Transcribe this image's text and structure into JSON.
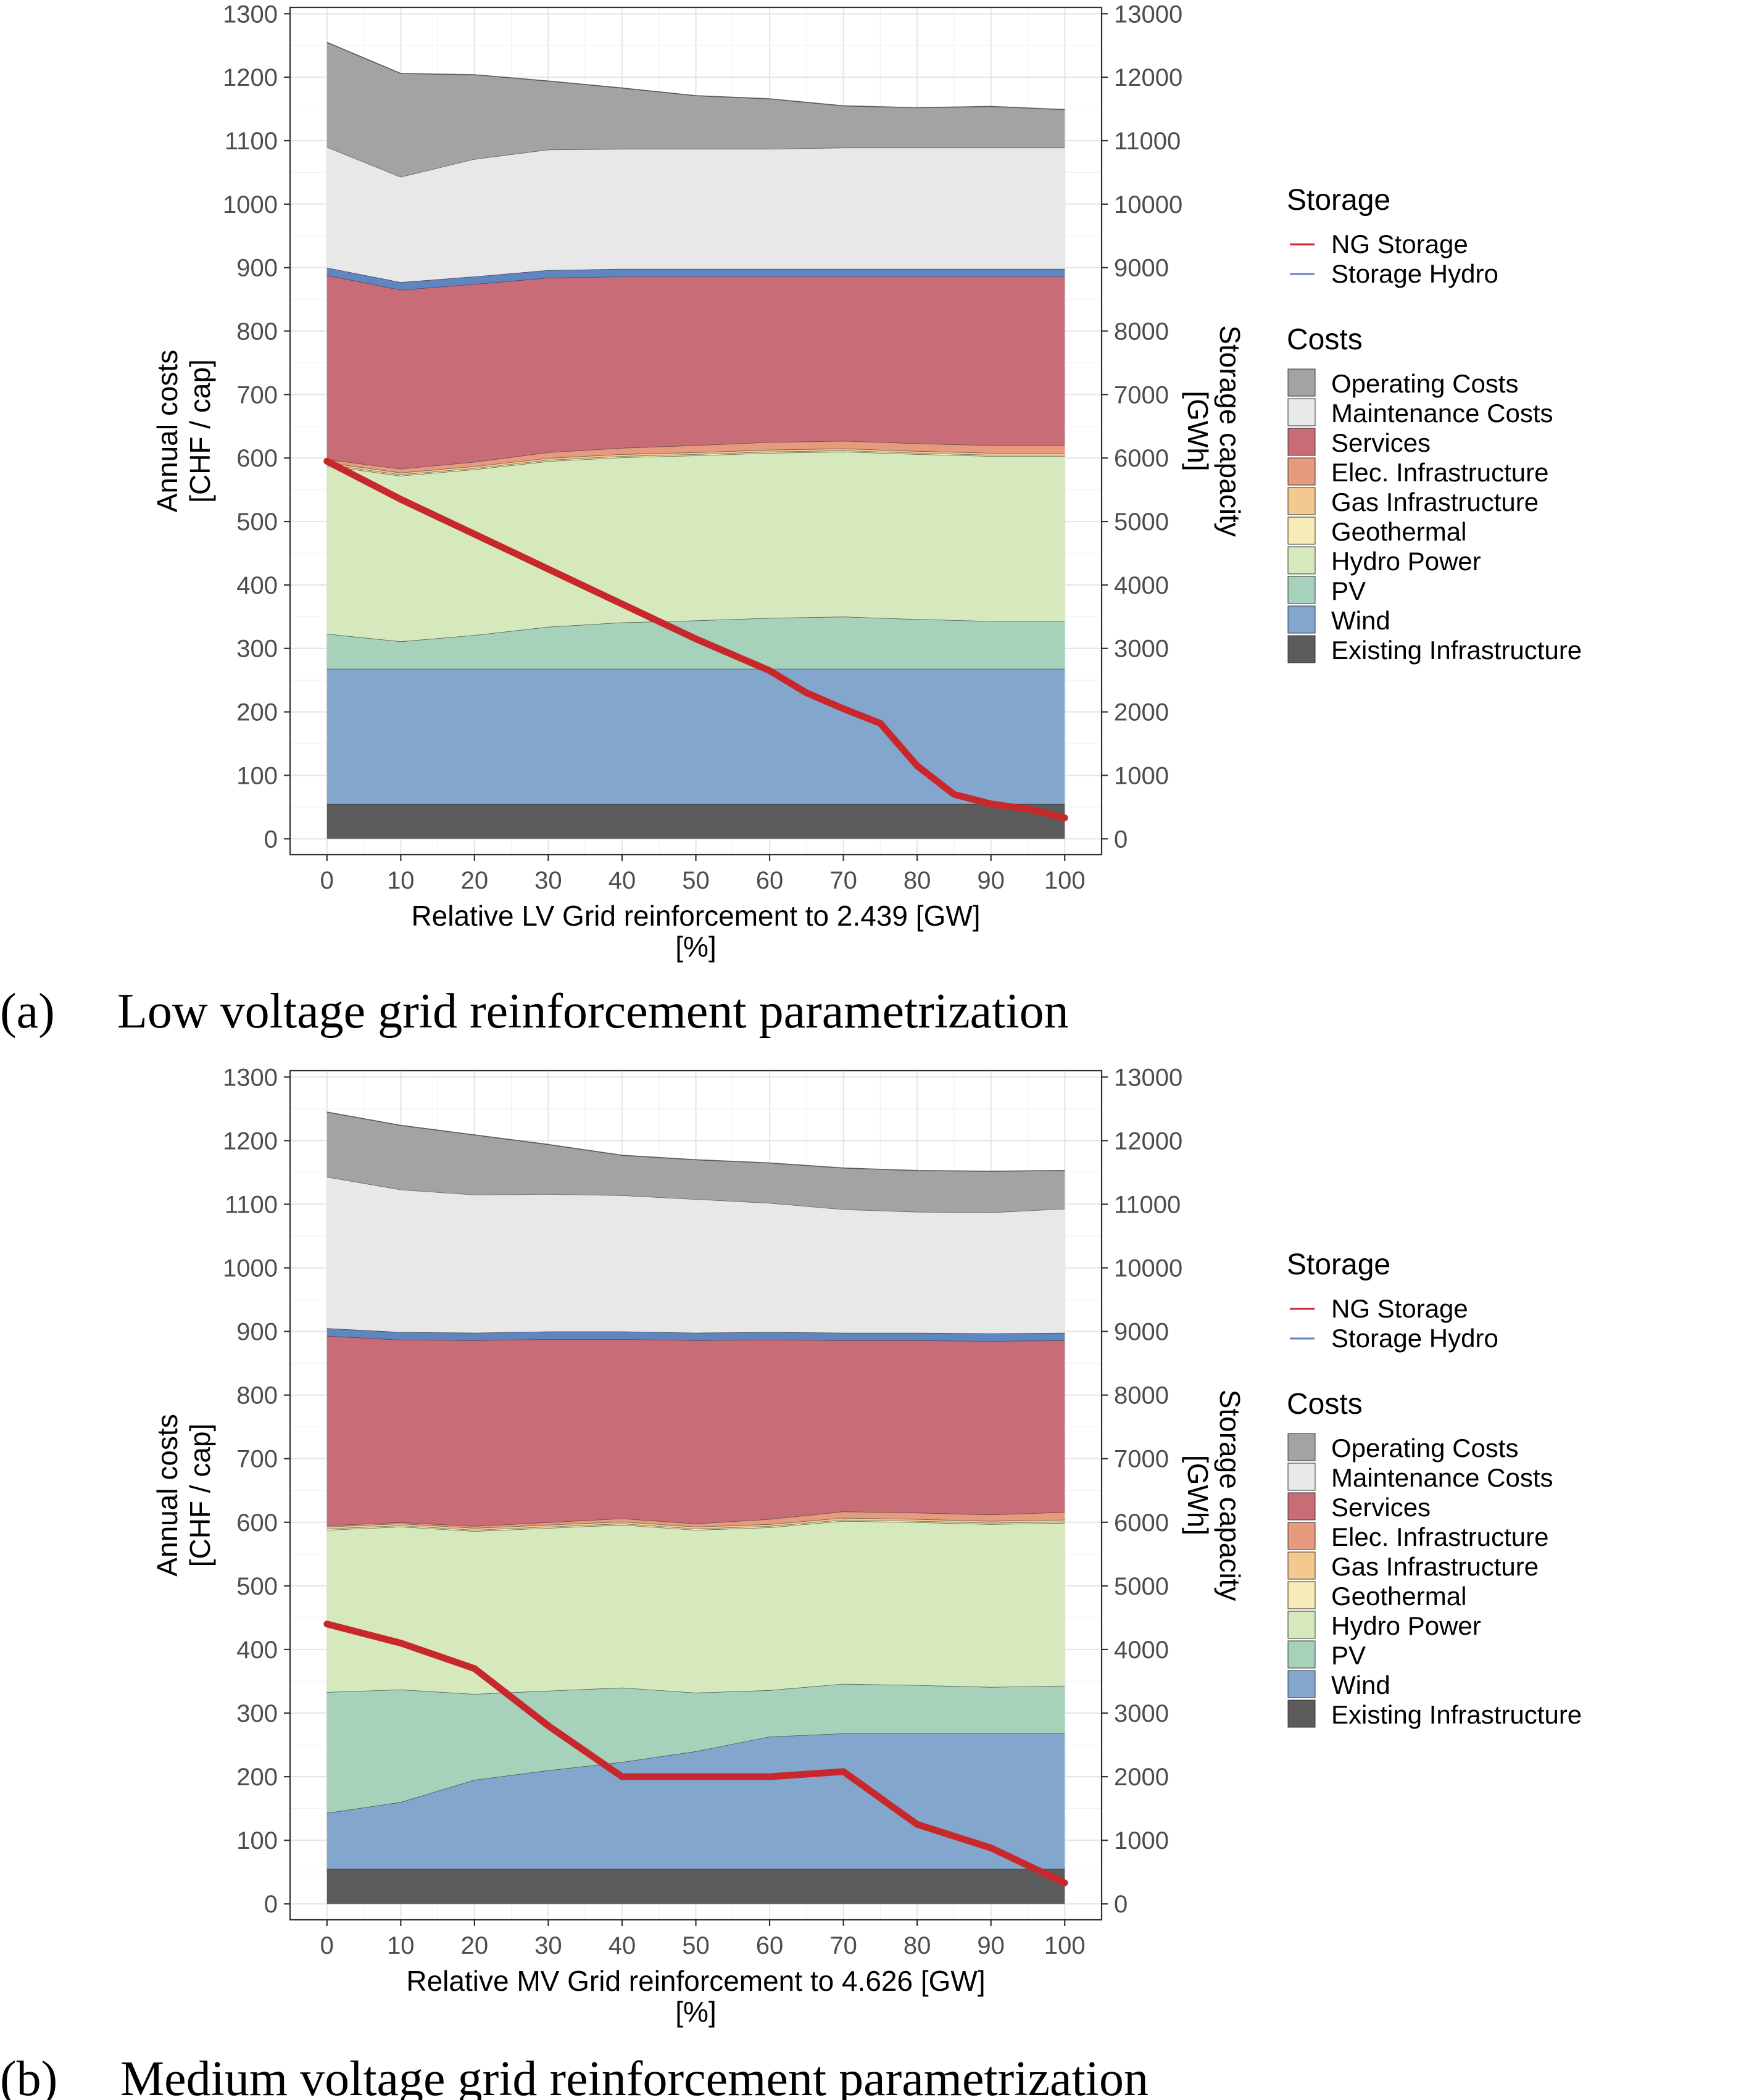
{
  "chart_data": [
    {
      "type": "area",
      "panel_label": "(a)",
      "caption": "Low voltage grid reinforcement parametrization",
      "xlabel": "Relative LV Grid reinforcement to 2.439 [GW]",
      "xlabel_unit": "[%]",
      "ylabel": "Annual costs",
      "ylabel_unit": "[CHF / cap]",
      "y2label": "Storage capacity",
      "y2label_unit": "[GWh]",
      "xlim": [
        -5,
        105
      ],
      "ylim": [
        -25,
        1310
      ],
      "y2lim": [
        -250,
        13100
      ],
      "x_ticks": [
        0,
        10,
        20,
        30,
        40,
        50,
        60,
        70,
        80,
        90,
        100
      ],
      "y_ticks": [
        0,
        100,
        200,
        300,
        400,
        500,
        600,
        700,
        800,
        900,
        1000,
        1100,
        1200,
        1300
      ],
      "y2_ticks": [
        0,
        1000,
        2000,
        3000,
        4000,
        5000,
        6000,
        7000,
        8000,
        9000,
        10000,
        11000,
        12000,
        13000
      ],
      "x": [
        0,
        10,
        20,
        30,
        40,
        50,
        60,
        70,
        80,
        90,
        100
      ],
      "cost_series": [
        {
          "name": "Existing Infrastructure",
          "color": "#5c5c5c",
          "values": [
            55,
            55,
            55,
            55,
            55,
            55,
            55,
            55,
            55,
            55,
            55
          ]
        },
        {
          "name": "Wind",
          "color": "#83a7cc",
          "values": [
            213,
            213,
            213,
            213,
            213,
            213,
            213,
            213,
            213,
            213,
            213
          ]
        },
        {
          "name": "PV",
          "color": "#a6d1bb",
          "values": [
            55,
            43,
            53,
            66,
            73,
            76,
            80,
            82,
            78,
            75,
            75
          ]
        },
        {
          "name": "Hydro Power",
          "color": "#d5e9bd",
          "values": [
            265,
            261,
            261,
            261,
            260,
            260,
            260,
            260,
            260,
            260,
            260
          ]
        },
        {
          "name": "Geothermal",
          "color": "#f6eab6",
          "values": [
            2,
            2,
            2,
            2,
            2,
            2,
            2,
            2,
            2,
            2,
            2
          ]
        },
        {
          "name": "Gas Infrastructure",
          "color": "#f3c98f",
          "values": [
            3,
            3,
            3,
            3,
            3,
            3,
            3,
            3,
            3,
            3,
            3
          ]
        },
        {
          "name": "Elec. Infrastructure",
          "color": "#e69a7e",
          "values": [
            5,
            6,
            7,
            9,
            10,
            11,
            12,
            12,
            12,
            12,
            12
          ]
        },
        {
          "name": "Services",
          "color": "#c86c77",
          "values": [
            290,
            282,
            280,
            275,
            270,
            266,
            261,
            259,
            263,
            266,
            266
          ]
        },
        {
          "name": "Storage Hydro band",
          "color": "#5f86c1",
          "values": [
            12,
            12,
            12,
            12,
            12,
            12,
            12,
            12,
            12,
            12,
            12
          ]
        },
        {
          "name": "Maintenance Costs",
          "color": "#e8e8e8",
          "values": [
            190,
            166,
            185,
            190,
            189,
            189,
            189,
            191,
            191,
            191,
            191
          ]
        },
        {
          "name": "Operating Costs",
          "color": "#a3a3a3",
          "values": [
            165,
            163,
            133,
            108,
            96,
            84,
            79,
            66,
            63,
            65,
            60
          ]
        }
      ],
      "storage_series": [
        {
          "name": "NG Storage",
          "color": "#c8282c",
          "x": [
            0,
            10,
            20,
            30,
            40,
            50,
            60,
            65,
            70,
            75,
            80,
            85,
            90,
            95,
            100
          ],
          "values": [
            5950,
            5350,
            4800,
            4250,
            3700,
            3150,
            2650,
            2300,
            2050,
            1820,
            1150,
            700,
            550,
            470,
            330
          ]
        }
      ],
      "legend": {
        "storage_title": "Storage",
        "storage_items": [
          {
            "label": "NG Storage",
            "color": "#c8282c"
          },
          {
            "label": "Storage Hydro",
            "color": "#5f86c1"
          }
        ],
        "costs_title": "Costs",
        "costs_items": [
          {
            "label": "Operating Costs",
            "color": "#a3a3a3"
          },
          {
            "label": "Maintenance Costs",
            "color": "#e8e8e8"
          },
          {
            "label": "Services",
            "color": "#c86c77"
          },
          {
            "label": "Elec. Infrastructure",
            "color": "#e69a7e"
          },
          {
            "label": "Gas Infrastructure",
            "color": "#f3c98f"
          },
          {
            "label": "Geothermal",
            "color": "#f6eab6"
          },
          {
            "label": "Hydro Power",
            "color": "#d5e9bd"
          },
          {
            "label": "PV",
            "color": "#a6d1bb"
          },
          {
            "label": "Wind",
            "color": "#83a7cc"
          },
          {
            "label": "Existing Infrastructure",
            "color": "#5c5c5c"
          }
        ]
      }
    },
    {
      "type": "area",
      "panel_label": "(b)",
      "caption": "Medium voltage grid reinforcement parametrization",
      "xlabel": "Relative MV Grid reinforcement to 4.626 [GW]",
      "xlabel_unit": "[%]",
      "ylabel": "Annual costs",
      "ylabel_unit": "[CHF / cap]",
      "y2label": "Storage capacity",
      "y2label_unit": "[GWh]",
      "xlim": [
        -5,
        105
      ],
      "ylim": [
        -25,
        1310
      ],
      "y2lim": [
        -250,
        13100
      ],
      "x_ticks": [
        0,
        10,
        20,
        30,
        40,
        50,
        60,
        70,
        80,
        90,
        100
      ],
      "y_ticks": [
        0,
        100,
        200,
        300,
        400,
        500,
        600,
        700,
        800,
        900,
        1000,
        1100,
        1200,
        1300
      ],
      "y2_ticks": [
        0,
        1000,
        2000,
        3000,
        4000,
        5000,
        6000,
        7000,
        8000,
        9000,
        10000,
        11000,
        12000,
        13000
      ],
      "x": [
        0,
        10,
        20,
        30,
        40,
        50,
        60,
        70,
        80,
        90,
        100
      ],
      "cost_series": [
        {
          "name": "Existing Infrastructure",
          "color": "#5c5c5c",
          "values": [
            55,
            55,
            55,
            55,
            55,
            55,
            55,
            55,
            55,
            55,
            55
          ]
        },
        {
          "name": "Wind",
          "color": "#83a7cc",
          "values": [
            88,
            105,
            140,
            155,
            168,
            185,
            208,
            213,
            213,
            213,
            213
          ]
        },
        {
          "name": "PV",
          "color": "#a6d1bb",
          "values": [
            190,
            177,
            135,
            125,
            117,
            92,
            73,
            78,
            76,
            73,
            75
          ]
        },
        {
          "name": "Hydro Power",
          "color": "#d5e9bd",
          "values": [
            255,
            256,
            256,
            256,
            256,
            256,
            256,
            256,
            256,
            256,
            256
          ]
        },
        {
          "name": "Geothermal",
          "color": "#f6eab6",
          "values": [
            2,
            2,
            2,
            2,
            2,
            2,
            2,
            2,
            2,
            2,
            2
          ]
        },
        {
          "name": "Gas Infrastructure",
          "color": "#f3c98f",
          "values": [
            3,
            3,
            3,
            3,
            3,
            3,
            3,
            3,
            3,
            3,
            3
          ]
        },
        {
          "name": "Elec. Infrastructure",
          "color": "#e69a7e",
          "values": [
            2,
            2,
            3,
            4,
            5,
            5,
            8,
            10,
            10,
            10,
            12
          ]
        },
        {
          "name": "Services",
          "color": "#c86c77",
          "values": [
            298,
            287,
            292,
            288,
            282,
            288,
            282,
            269,
            271,
            273,
            270
          ]
        },
        {
          "name": "Storage Hydro band",
          "color": "#5f86c1",
          "values": [
            12,
            12,
            12,
            12,
            12,
            12,
            12,
            12,
            12,
            12,
            12
          ]
        },
        {
          "name": "Maintenance Costs",
          "color": "#e8e8e8",
          "values": [
            238,
            224,
            217,
            216,
            214,
            210,
            203,
            194,
            190,
            190,
            195
          ]
        },
        {
          "name": "Operating Costs",
          "color": "#a3a3a3",
          "values": [
            102,
            101,
            94,
            78,
            63,
            62,
            63,
            65,
            65,
            65,
            60
          ]
        }
      ],
      "storage_series": [
        {
          "name": "NG Storage",
          "color": "#c8282c",
          "x": [
            0,
            10,
            20,
            30,
            40,
            50,
            60,
            70,
            80,
            90,
            100
          ],
          "values": [
            4400,
            4100,
            3700,
            2800,
            2000,
            2000,
            2000,
            2080,
            1250,
            880,
            330
          ]
        }
      ],
      "legend": {
        "storage_title": "Storage",
        "storage_items": [
          {
            "label": "NG Storage",
            "color": "#c8282c"
          },
          {
            "label": "Storage Hydro",
            "color": "#5f86c1"
          }
        ],
        "costs_title": "Costs",
        "costs_items": [
          {
            "label": "Operating Costs",
            "color": "#a3a3a3"
          },
          {
            "label": "Maintenance Costs",
            "color": "#e8e8e8"
          },
          {
            "label": "Services",
            "color": "#c86c77"
          },
          {
            "label": "Elec. Infrastructure",
            "color": "#e69a7e"
          },
          {
            "label": "Gas Infrastructure",
            "color": "#f3c98f"
          },
          {
            "label": "Geothermal",
            "color": "#f6eab6"
          },
          {
            "label": "Hydro Power",
            "color": "#d5e9bd"
          },
          {
            "label": "PV",
            "color": "#a6d1bb"
          },
          {
            "label": "Wind",
            "color": "#83a7cc"
          },
          {
            "label": "Existing Infrastructure",
            "color": "#5c5c5c"
          }
        ]
      }
    }
  ]
}
